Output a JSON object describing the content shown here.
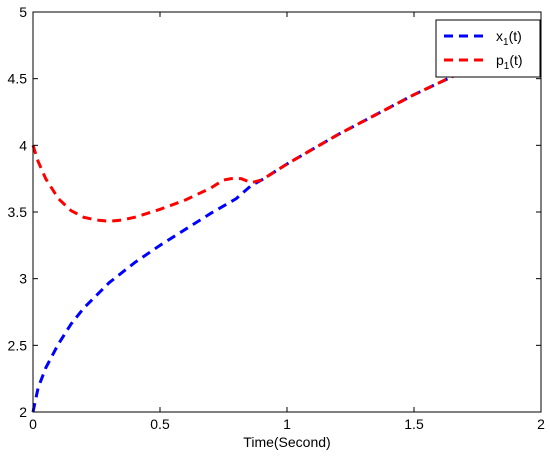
{
  "chart_data": {
    "type": "line",
    "title": "",
    "xlabel": "Time(Second)",
    "ylabel": "",
    "xlim": [
      0,
      2
    ],
    "ylim": [
      2,
      5
    ],
    "xticks": [
      0,
      0.5,
      1,
      1.5,
      2
    ],
    "xtick_labels": [
      "0",
      "0.5",
      "1",
      "1.5",
      "2"
    ],
    "yticks": [
      2,
      2.5,
      3,
      3.5,
      4,
      4.5,
      5
    ],
    "ytick_labels": [
      "2",
      "2.5",
      "3",
      "3.5",
      "4",
      "4.5",
      "5"
    ],
    "grid": false,
    "legend_position": "top-right",
    "series": [
      {
        "name": "x",
        "name_subscript": "1",
        "name_suffix": "(t)",
        "color": "#0000ff",
        "line_style": "dashed",
        "x": [
          0,
          0.02,
          0.05,
          0.1,
          0.15,
          0.2,
          0.3,
          0.4,
          0.5,
          0.6,
          0.7,
          0.8,
          0.86,
          0.9,
          1.0,
          1.1,
          1.2,
          1.3,
          1.4,
          1.5,
          1.6,
          1.7,
          1.8,
          1.9,
          2.0
        ],
        "y": [
          2.0,
          2.18,
          2.33,
          2.51,
          2.66,
          2.78,
          2.97,
          3.12,
          3.25,
          3.37,
          3.49,
          3.6,
          3.7,
          3.74,
          3.86,
          3.97,
          4.08,
          4.18,
          4.28,
          4.38,
          4.47,
          4.56,
          4.65,
          4.74,
          4.83
        ]
      },
      {
        "name": "p",
        "name_subscript": "1",
        "name_suffix": "(t)",
        "color": "#ff0000",
        "line_style": "dashed",
        "x": [
          0,
          0.02,
          0.05,
          0.1,
          0.15,
          0.2,
          0.25,
          0.3,
          0.35,
          0.4,
          0.5,
          0.6,
          0.7,
          0.75,
          0.78,
          0.82,
          0.86,
          0.9,
          1.0,
          1.1,
          1.2,
          1.3,
          1.4,
          1.5,
          1.6,
          1.7,
          1.8,
          1.9,
          2.0
        ],
        "y": [
          4.0,
          3.88,
          3.75,
          3.6,
          3.51,
          3.46,
          3.44,
          3.43,
          3.44,
          3.46,
          3.52,
          3.59,
          3.68,
          3.74,
          3.75,
          3.75,
          3.72,
          3.74,
          3.86,
          3.97,
          4.08,
          4.18,
          4.28,
          4.38,
          4.47,
          4.56,
          4.65,
          4.74,
          4.83
        ]
      }
    ]
  }
}
